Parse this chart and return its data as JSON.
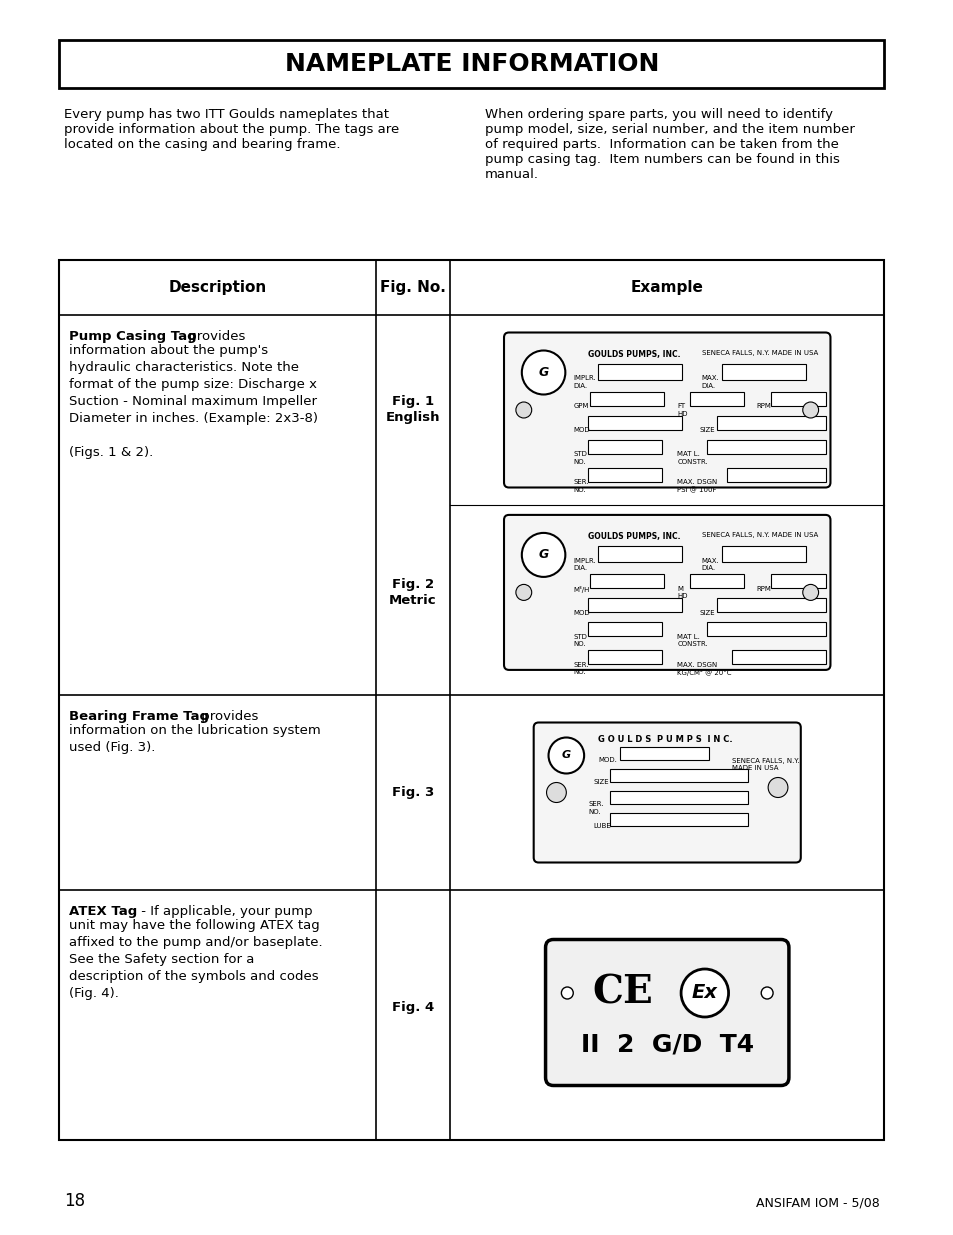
{
  "title": "NAMEPLATE INFORMATION",
  "page_number": "18",
  "footer_right": "ANSIFAM IOM - 5/08",
  "intro_left": "Every pump has two ITT Goulds nameplates that\nprovide information about the pump. The tags are\nlocated on the casing and bearing frame.",
  "intro_right": "When ordering spare parts, you will need to identify\npump model, size, serial number, and the item number\nof required parts.  Information can be taken from the\npump casing tag.  Item numbers can be found in this\nmanual.",
  "col_desc": "Description",
  "col_fig": "Fig. No.",
  "col_ex": "Example",
  "row1_desc_bold": "Pump Casing Tag",
  "row1_desc_rest": " - provides\ninformation about the pump's\nhydraulic characteristics. Note the\nformat of the pump size: Discharge x\nSuction - Nominal maximum Impeller\nDiameter in inches. (Example: 2x3-8)\n\n(Figs. 1 & 2).",
  "row1_fig1": "Fig. 1\nEnglish",
  "row1_fig2": "Fig. 2\nMetric",
  "row2_desc_bold": "Bearing Frame Tag",
  "row2_desc_rest": " - provides\ninformation on the lubrication system\nused (Fig. 3).",
  "row2_fig": "Fig. 3",
  "row3_desc_bold": "ATEX Tag",
  "row3_desc_rest": " - If applicable, your pump\nunit may have the following ATEX tag\naffixed to the pump and/or baseplate.\nSee the Safety section for a\ndescription of the symbols and codes\n(Fig. 4).",
  "row3_fig": "Fig. 4",
  "bg_color": "#ffffff",
  "text_color": "#000000",
  "border_color": "#000000"
}
